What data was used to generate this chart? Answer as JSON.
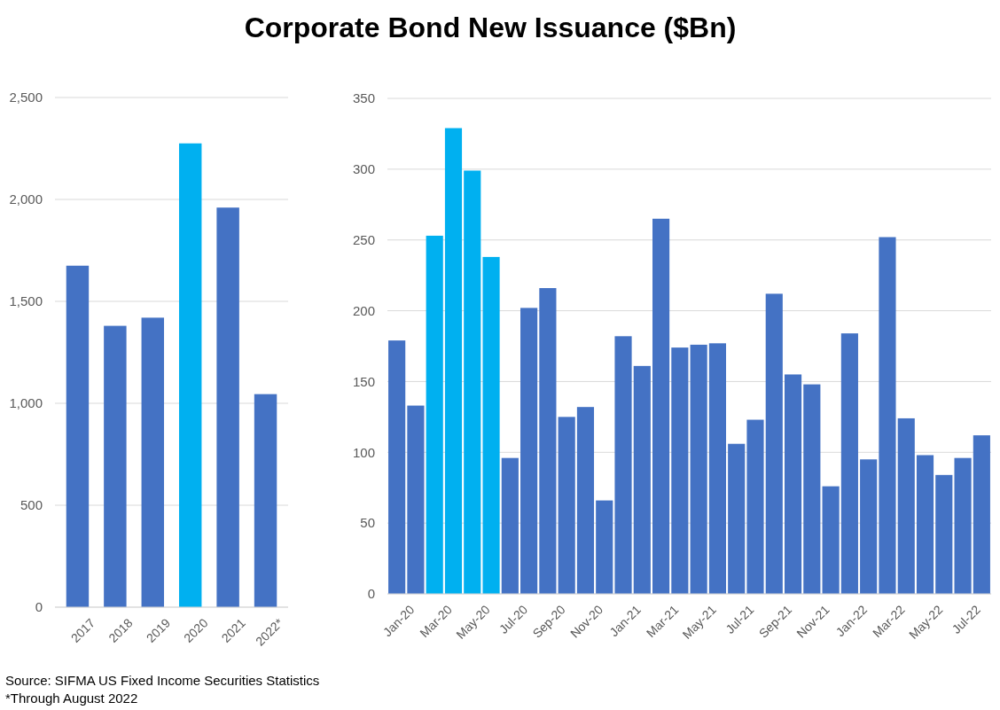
{
  "chart_data": [
    {
      "type": "bar",
      "categories": [
        "2017",
        "2018",
        "2019",
        "2020",
        "2021",
        "2022*"
      ],
      "values": [
        1675,
        1380,
        1420,
        2275,
        1960,
        1045
      ],
      "colors": [
        "#4472c4",
        "#4472c4",
        "#4472c4",
        "#00b0f0",
        "#4472c4",
        "#4472c4"
      ],
      "ylim": [
        0,
        2500
      ],
      "yticks": [
        0,
        {
          "value": 500,
          "label": "500"
        },
        {
          "value": 1000,
          "label": "1,000"
        },
        {
          "value": 1500,
          "label": "1,500"
        },
        {
          "value": 2000,
          "label": "2,000"
        },
        {
          "value": 2500,
          "label": "2,500"
        }
      ],
      "grid": "y",
      "annotations": [
        "Source: SIFMA US Fixed Income Securities Statistics",
        "*Through August 2022"
      ]
    },
    {
      "type": "bar",
      "title": "Corporate Bond New Issuance ($Bn)",
      "categories": [
        "Jan-20",
        null,
        "Mar-20",
        null,
        "May-20",
        null,
        "Jul-20",
        null,
        "Sep-20",
        null,
        "Nov-20",
        null,
        "Jan-21",
        null,
        "Mar-21",
        null,
        "May-21",
        null,
        "Jul-21",
        null,
        "Sep-21",
        null,
        "Nov-21",
        null,
        "Jan-22",
        null,
        "Mar-22",
        null,
        "May-22",
        null,
        "Jul-22",
        null
      ],
      "values": [
        179,
        133,
        253,
        329,
        299,
        238,
        96,
        202,
        216,
        125,
        132,
        66,
        182,
        161,
        265,
        174,
        176,
        177,
        106,
        123,
        212,
        155,
        148,
        76,
        184,
        95,
        252,
        124,
        98,
        84,
        96,
        112
      ],
      "colors": [
        "#4472c4",
        "#4472c4",
        "#00b0f0",
        "#00b0f0",
        "#00b0f0",
        "#00b0f0",
        "#4472c4",
        "#4472c4",
        "#4472c4",
        "#4472c4",
        "#4472c4",
        "#4472c4",
        "#4472c4",
        "#4472c4",
        "#4472c4",
        "#4472c4",
        "#4472c4",
        "#4472c4",
        "#4472c4",
        "#4472c4",
        "#4472c4",
        "#4472c4",
        "#4472c4",
        "#4472c4",
        "#4472c4",
        "#4472c4",
        "#4472c4",
        "#4472c4",
        "#4472c4",
        "#4472c4",
        "#4472c4",
        "#4472c4"
      ],
      "ylim": [
        0,
        350
      ],
      "yticks": [
        0,
        50,
        100,
        150,
        200,
        250,
        300,
        350
      ],
      "grid": "y"
    }
  ]
}
